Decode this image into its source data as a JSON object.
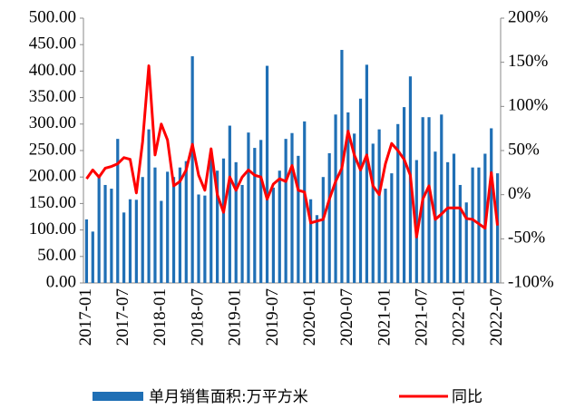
{
  "chart_data": {
    "type": "bar_line",
    "categories": [
      "2017-01",
      null,
      null,
      null,
      null,
      null,
      "2017-07",
      null,
      null,
      null,
      null,
      null,
      "2018-01",
      null,
      null,
      null,
      null,
      null,
      "2018-07",
      null,
      null,
      null,
      null,
      null,
      "2019-01",
      null,
      null,
      null,
      null,
      null,
      "2019-07",
      null,
      null,
      null,
      null,
      null,
      "2020-01",
      null,
      null,
      null,
      null,
      null,
      "2020-07",
      null,
      null,
      null,
      null,
      null,
      "2021-01",
      null,
      null,
      null,
      null,
      null,
      "2021-07",
      null,
      null,
      null,
      null,
      null,
      "2022-01",
      null,
      null,
      null,
      null,
      null,
      "2022-07"
    ],
    "series": [
      {
        "name": "单月销售面积:万平方米",
        "color": "#1f6fb5",
        "axis": "y",
        "values": [
          120,
          97,
          200,
          185,
          178,
          272,
          133,
          158,
          157,
          200,
          290,
          218,
          155,
          210,
          200,
          218,
          230,
          428,
          167,
          165,
          235,
          212,
          235,
          297,
          228,
          185,
          284,
          255,
          270,
          410,
          180,
          212,
          272,
          283,
          240,
          305,
          158,
          128,
          200,
          245,
          318,
          440,
          322,
          282,
          348,
          412,
          263,
          290,
          178,
          207,
          300,
          332,
          390,
          232,
          313,
          313,
          248,
          318,
          228,
          244,
          185,
          152,
          218,
          218,
          244,
          292,
          207
        ]
      },
      {
        "name": "同比",
        "color": "#ff0000",
        "axis": "y2",
        "values": [
          18,
          28,
          20,
          30,
          32,
          35,
          42,
          40,
          2,
          60,
          146,
          45,
          80,
          62,
          10,
          15,
          28,
          57,
          22,
          5,
          52,
          0,
          -20,
          20,
          5,
          20,
          28,
          22,
          20,
          -5,
          12,
          18,
          15,
          33,
          5,
          3,
          -32,
          -30,
          -28,
          -5,
          15,
          30,
          72,
          45,
          28,
          45,
          10,
          0,
          35,
          58,
          50,
          40,
          22,
          -48,
          -5,
          10,
          -28,
          -22,
          -15,
          -15,
          -15,
          -27,
          -28,
          -33,
          -38,
          25,
          -35
        ]
      }
    ],
    "ylim": [
      0,
      500
    ],
    "yticks": [
      {
        "value": 0,
        "label": "0.00"
      },
      {
        "value": 50,
        "label": "50.00"
      },
      {
        "value": 100,
        "label": "100.00"
      },
      {
        "value": 150,
        "label": "150.00"
      },
      {
        "value": 200,
        "label": "200.00"
      },
      {
        "value": 250,
        "label": "250.00"
      },
      {
        "value": 300,
        "label": "300.00"
      },
      {
        "value": 350,
        "label": "350.00"
      },
      {
        "value": 400,
        "label": "400.00"
      },
      {
        "value": 450,
        "label": "450.00"
      },
      {
        "value": 500,
        "label": "500.00"
      }
    ],
    "y2lim": [
      -100,
      200
    ],
    "y2ticks": [
      {
        "value": -100,
        "label": "-100%"
      },
      {
        "value": -50,
        "label": "-50%"
      },
      {
        "value": 0,
        "label": "0%"
      },
      {
        "value": 50,
        "label": "50%"
      },
      {
        "value": 100,
        "label": "100%"
      },
      {
        "value": 150,
        "label": "150%"
      },
      {
        "value": 200,
        "label": "200%"
      }
    ],
    "legend": "bottom"
  }
}
